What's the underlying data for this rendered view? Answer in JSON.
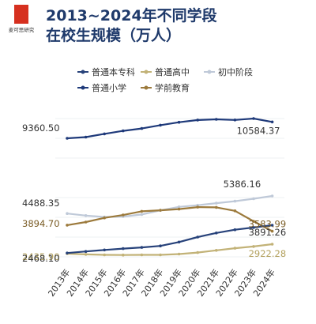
{
  "brand": {
    "name": "麦可思研究",
    "accent": "#d6301f"
  },
  "title": {
    "line1": "2013~2024年不同学段",
    "line2": "在校生规模（万人）"
  },
  "chart_data": {
    "type": "line",
    "title": "2013~2024年不同学段在校生规模（万人）",
    "categories": [
      "2013年",
      "2014年",
      "2015年",
      "2016年",
      "2017年",
      "2018年",
      "2019年",
      "2020年",
      "2021年",
      "2022年",
      "2023年",
      "2024年"
    ],
    "series": [
      {
        "name": "普通本专科",
        "color": "#27427a",
        "values": [
          2468.1,
          2547.7,
          2625.3,
          2695.8,
          2753.6,
          2831.0,
          3031.5,
          3285.3,
          3496.1,
          3659.4,
          3775.0,
          3891.26
        ],
        "labels": [
          "2468.10",
          "",
          "",
          "",
          "",
          "",
          "",
          "",
          "",
          "",
          "",
          "3891.26"
        ]
      },
      {
        "name": "普通高中",
        "color": "#c2b277",
        "values": [
          2435.9,
          2400.5,
          2374.4,
          2366.6,
          2374.5,
          2375.4,
          2414.3,
          2494.5,
          2605.0,
          2713.9,
          2803.6,
          2922.28
        ],
        "labels": [
          "2435.90",
          "",
          "",
          "",
          "",
          "",
          "",
          "",
          "",
          "",
          "",
          "2922.28"
        ]
      },
      {
        "name": "初中阶段",
        "color": "#bfc9d8",
        "values": [
          4488.35,
          4384.6,
          4312.0,
          4329.4,
          4442.1,
          4652.6,
          4827.1,
          4914.1,
          5018.4,
          5120.6,
          5243.7,
          5386.16
        ],
        "labels": [
          "4488.35",
          "",
          "",
          "",
          "",
          "",
          "",
          "",
          "",
          "",
          "",
          "5386.16"
        ]
      },
      {
        "name": "普通小学",
        "color": "#1f3a7a",
        "values": [
          9360.5,
          9451.1,
          9692.2,
          9913.0,
          10093.7,
          10339.3,
          10561.2,
          10725.4,
          10779.9,
          10732.0,
          10836.0,
          10584.37
        ],
        "labels": [
          "9360.50",
          "",
          "",
          "",
          "",
          "",
          "",
          "",
          "",
          "",
          "",
          "10584.37"
        ]
      },
      {
        "name": "学前教育",
        "color": "#9c7a3c",
        "values": [
          3894.7,
          4050.7,
          4264.8,
          4413.9,
          4600.1,
          4656.4,
          4713.9,
          4818.3,
          4805.2,
          4627.5,
          4093.0,
          3583.99
        ],
        "labels": [
          "3894.70",
          "",
          "",
          "",
          "",
          "",
          "",
          "",
          "",
          "",
          "",
          "3583.99"
        ]
      }
    ]
  }
}
